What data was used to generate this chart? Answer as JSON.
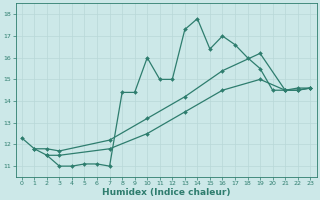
{
  "line1_x": [
    0,
    1,
    2,
    3,
    4,
    5,
    6,
    7,
    8,
    9,
    10,
    11,
    12,
    13,
    14,
    15,
    16,
    17,
    18,
    19,
    20,
    21,
    22,
    23
  ],
  "line1_y": [
    12.3,
    11.8,
    11.5,
    11.0,
    11.0,
    11.1,
    11.1,
    11.0,
    14.4,
    14.4,
    16.0,
    15.0,
    15.0,
    17.3,
    17.8,
    16.4,
    17.0,
    16.6,
    16.0,
    15.5,
    14.5,
    14.5,
    14.6,
    14.6
  ],
  "line2_x": [
    1,
    2,
    3,
    7,
    10,
    13,
    16,
    19,
    21,
    22,
    23
  ],
  "line2_y": [
    11.8,
    11.8,
    11.7,
    12.2,
    13.2,
    14.2,
    15.4,
    16.2,
    14.5,
    14.5,
    14.6
  ],
  "line3_x": [
    2,
    3,
    7,
    10,
    13,
    16,
    19,
    21,
    22,
    23
  ],
  "line3_y": [
    11.5,
    11.5,
    11.8,
    12.5,
    13.5,
    14.5,
    15.0,
    14.5,
    14.5,
    14.6
  ],
  "bg_color": "#cce8e8",
  "grid_color": "#b8d8d8",
  "line_color": "#2e7d6e",
  "marker": "D",
  "marker_size": 2.0,
  "line_width": 0.9,
  "xlim": [
    -0.5,
    23.5
  ],
  "ylim": [
    10.5,
    18.5
  ],
  "yticks": [
    11,
    12,
    13,
    14,
    15,
    16,
    17,
    18
  ],
  "xticks": [
    0,
    1,
    2,
    3,
    4,
    5,
    6,
    7,
    8,
    9,
    10,
    11,
    12,
    13,
    14,
    15,
    16,
    17,
    18,
    19,
    20,
    21,
    22,
    23
  ],
  "xlabel": "Humidex (Indice chaleur)",
  "xlabel_fontsize": 6.5
}
